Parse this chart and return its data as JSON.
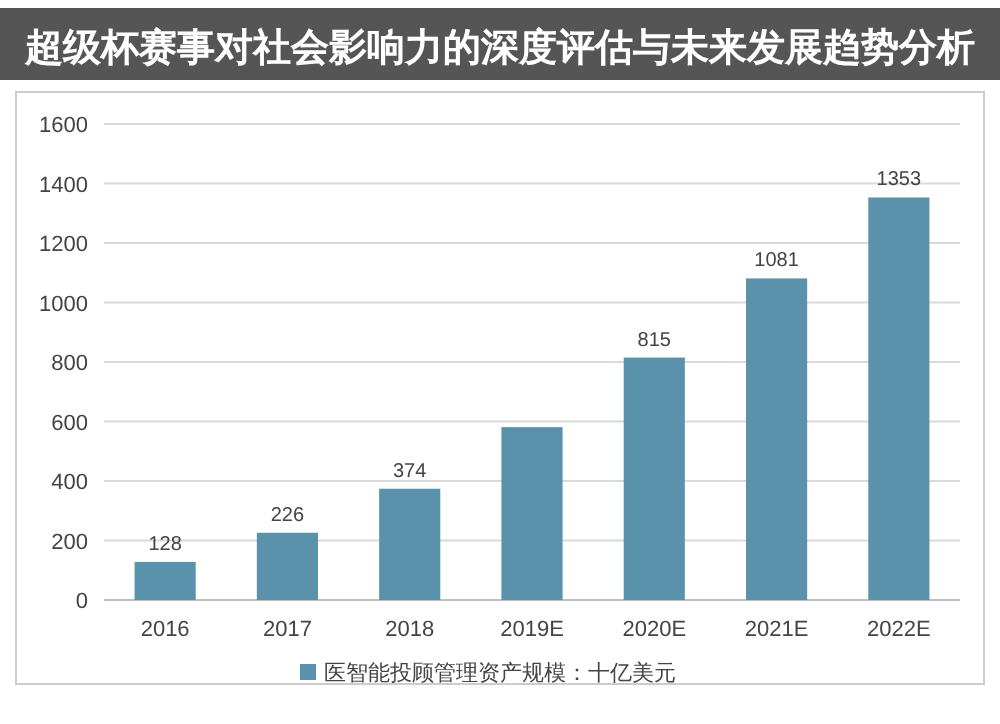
{
  "chart_data": {
    "type": "bar",
    "title": "超级杯赛事对社会影响力的深度评估与未来发展趋势分析",
    "categories": [
      "2016",
      "2017",
      "2018",
      "2019E",
      "2020E",
      "2021E",
      "2022E"
    ],
    "series": [
      {
        "name": "医智能投顾管理资产规模：十亿美元",
        "color": "#5b92ab",
        "values": [
          128,
          226,
          374,
          581,
          815,
          1081,
          1353
        ],
        "value_labels": [
          "128",
          "226",
          "374",
          null,
          "815",
          "1081",
          "1353"
        ]
      }
    ],
    "ylim": [
      0,
      1600
    ],
    "yticks": [
      0,
      200,
      400,
      600,
      800,
      1000,
      1200,
      1400,
      1600
    ],
    "grid": "y",
    "legend": "bottom"
  }
}
